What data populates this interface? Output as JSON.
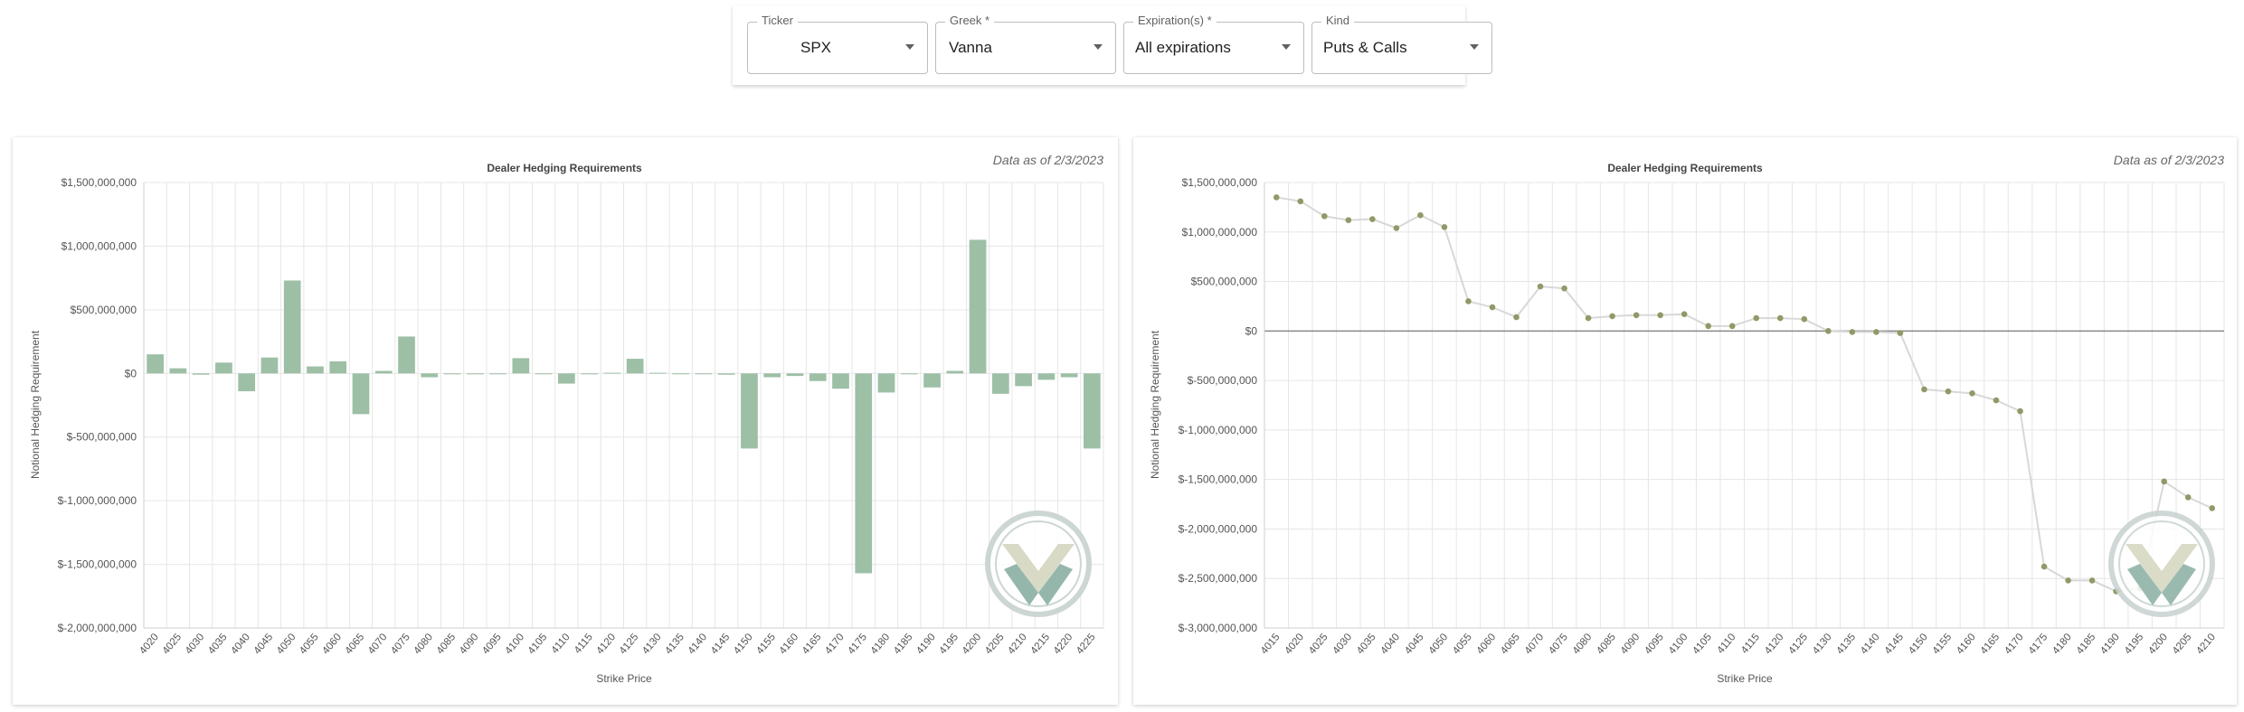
{
  "filters": [
    {
      "label": "Ticker",
      "value": "SPX"
    },
    {
      "label": "Greek *",
      "value": "Vanna"
    },
    {
      "label": "Expiration(s) *",
      "value": "All expirations"
    },
    {
      "label": "Kind",
      "value": "Puts & Calls"
    }
  ],
  "chart_data": [
    {
      "type": "bar",
      "title": "Dealer Hedging Requirements",
      "subtitle": "Data as of 2/3/2023",
      "xlabel": "Strike Price",
      "ylabel": "Notional Hedging Requirement",
      "ylim": [
        -2000000000,
        1500000000
      ],
      "yticks": [
        1500000000,
        1000000000,
        500000000,
        0,
        -500000000,
        -1000000000,
        -1500000000,
        -2000000000
      ],
      "ytick_labels": [
        "$1,500,000,000",
        "$1,000,000,000",
        "$500,000,000",
        "$0",
        "$-500,000,000",
        "$-1,000,000,000",
        "$-1,500,000,000",
        "$-2,000,000,000"
      ],
      "grid": true,
      "color": "#9dbfa6",
      "categories": [
        "4020",
        "4025",
        "4030",
        "4035",
        "4040",
        "4045",
        "4050",
        "4055",
        "4060",
        "4065",
        "4070",
        "4075",
        "4080",
        "4085",
        "4090",
        "4095",
        "4100",
        "4105",
        "4110",
        "4115",
        "4120",
        "4125",
        "4130",
        "4135",
        "4140",
        "4145",
        "4150",
        "4155",
        "4160",
        "4165",
        "4170",
        "4175",
        "4180",
        "4185",
        "4190",
        "4195",
        "4200",
        "4205",
        "4210",
        "4215",
        "4220",
        "4225"
      ],
      "values": [
        150000000,
        40000000,
        -10000000,
        85000000,
        -140000000,
        125000000,
        730000000,
        55000000,
        95000000,
        -320000000,
        20000000,
        290000000,
        -30000000,
        -5000000,
        -5000000,
        -5000000,
        120000000,
        -5000000,
        -80000000,
        -5000000,
        5000000,
        115000000,
        5000000,
        -5000000,
        -5000000,
        -10000000,
        -590000000,
        -30000000,
        -20000000,
        -60000000,
        -120000000,
        -1570000000,
        -150000000,
        -5000000,
        -110000000,
        20000000,
        1050000000,
        -160000000,
        -100000000,
        -50000000,
        -30000000,
        -590000000
      ]
    },
    {
      "type": "line",
      "title": "Dealer Hedging Requirements",
      "subtitle": "Data as of 2/3/2023",
      "xlabel": "Strike Price",
      "ylabel": "Notional Hedging Requirement",
      "ylim": [
        -3000000000,
        1500000000
      ],
      "yticks": [
        1500000000,
        1000000000,
        500000000,
        0,
        -500000000,
        -1000000000,
        -1500000000,
        -2000000000,
        -2500000000,
        -3000000000
      ],
      "ytick_labels": [
        "$1,500,000,000",
        "$1,000,000,000",
        "$500,000,000",
        "$0",
        "$-500,000,000",
        "$-1,000,000,000",
        "$-1,500,000,000",
        "$-2,000,000,000",
        "$-2,500,000,000",
        "$-3,000,000,000"
      ],
      "grid": true,
      "line_color": "#d8d8d8",
      "point_color": "#8f9a66",
      "categories": [
        "4015",
        "4020",
        "4025",
        "4030",
        "4035",
        "4040",
        "4045",
        "4050",
        "4055",
        "4060",
        "4065",
        "4070",
        "4075",
        "4080",
        "4085",
        "4090",
        "4095",
        "4100",
        "4105",
        "4110",
        "4115",
        "4120",
        "4125",
        "4130",
        "4135",
        "4140",
        "4145",
        "4150",
        "4155",
        "4160",
        "4165",
        "4170",
        "4175",
        "4180",
        "4185",
        "4190",
        "4195",
        "4200",
        "4205",
        "4210"
      ],
      "values": [
        1350000000,
        1310000000,
        1160000000,
        1120000000,
        1130000000,
        1040000000,
        1170000000,
        1050000000,
        300000000,
        240000000,
        140000000,
        450000000,
        430000000,
        130000000,
        150000000,
        160000000,
        160000000,
        170000000,
        50000000,
        50000000,
        130000000,
        130000000,
        120000000,
        0,
        -10000000,
        -10000000,
        -20000000,
        -590000000,
        -610000000,
        -630000000,
        -700000000,
        -810000000,
        -2380000000,
        -2520000000,
        -2520000000,
        -2630000000,
        -2600000000,
        -1520000000,
        -1680000000,
        -1790000000
      ]
    }
  ]
}
